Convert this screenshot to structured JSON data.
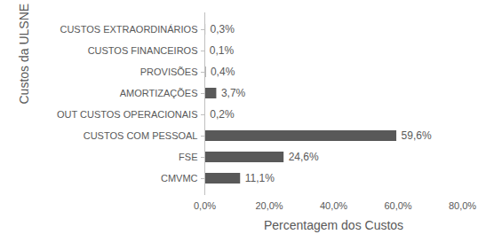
{
  "chart_data": {
    "type": "bar",
    "orientation": "horizontal",
    "x_label": "Percentagem dos Custos",
    "y_label": "Custos da ULSNE",
    "categories": [
      "CUSTOS EXTRAORDINÁRIOS",
      "CUSTOS FINANCEIROS",
      "PROVISÕES",
      "AMORTIZAÇÕES",
      "OUT CUSTOS OPERACIONAIS",
      "CUSTOS COM PESSOAL",
      "FSE",
      "CMVMC"
    ],
    "values": [
      0.3,
      0.1,
      0.4,
      3.7,
      0.2,
      59.6,
      24.6,
      11.1
    ],
    "value_labels": [
      "0,3%",
      "0,1%",
      "0,4%",
      "3,7%",
      "0,2%",
      "59,6%",
      "24,6%",
      "11,1%"
    ],
    "data_labels": true,
    "color": "#595959",
    "xlim": [
      0,
      80
    ],
    "xticks": [
      {
        "value": 0,
        "label": "0,0%"
      },
      {
        "value": 20,
        "label": "20,0%"
      },
      {
        "value": 40,
        "label": "40,0%"
      },
      {
        "value": 60,
        "label": "60,0%"
      },
      {
        "value": 80,
        "label": "80,0%"
      }
    ],
    "grid": false
  }
}
